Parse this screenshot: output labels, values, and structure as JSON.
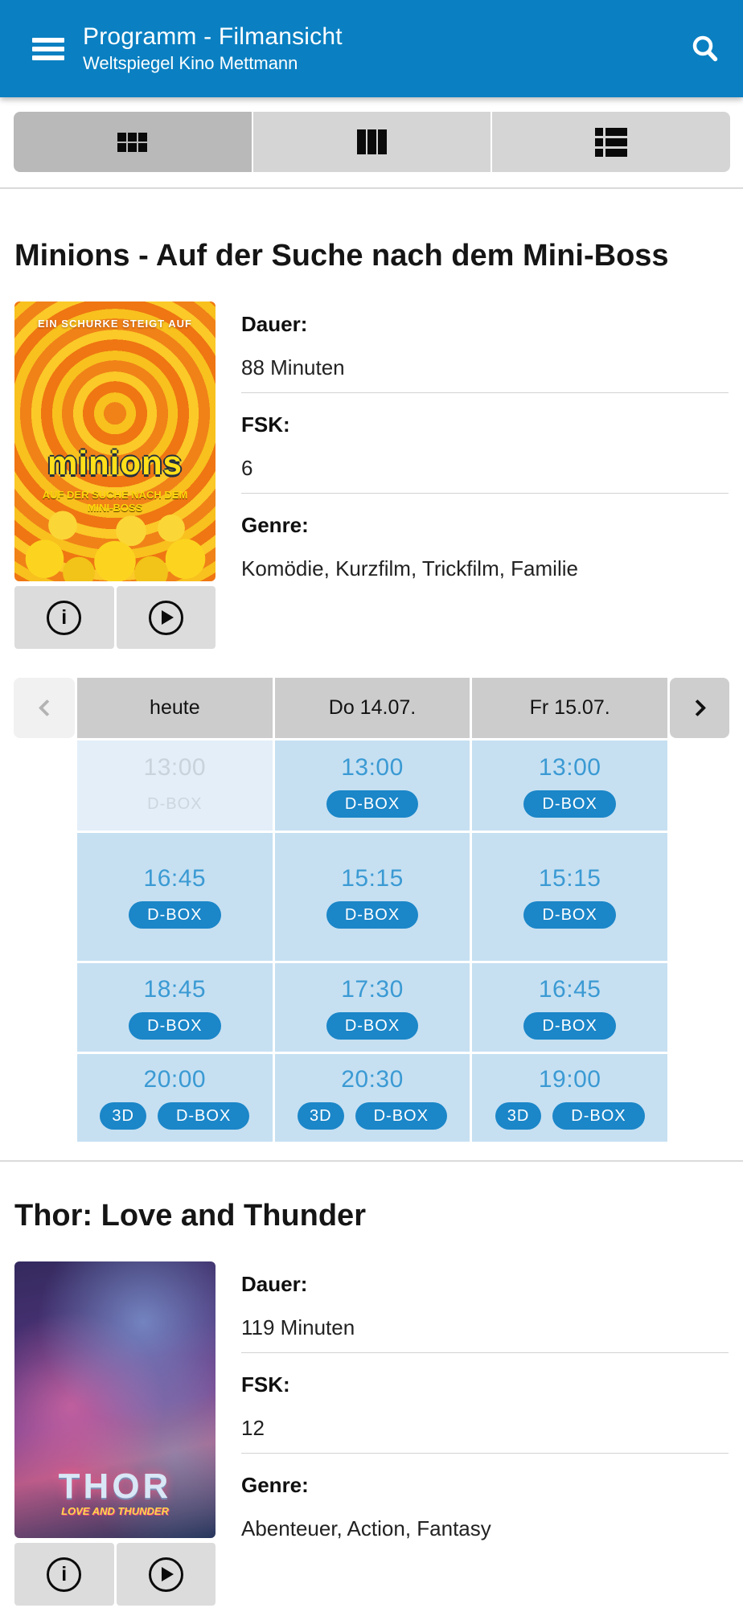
{
  "app": {
    "title": "Programm - Filmansicht",
    "subtitle": "Weltspiegel Kino Mettmann"
  },
  "colors": {
    "header_bg": "#0a80c2",
    "accent_blue": "#1b86c8",
    "time_blue": "#3b9ad3",
    "cell_bg": "#c6e0f2",
    "cell_past_bg": "#e3eef8",
    "past_text": "#c9d3db",
    "header_cell_bg": "#cccccc",
    "toggle_selected_bg": "#b9b9b9",
    "toggle_bg": "#d5d5d5",
    "action_button_bg": "#dcdcdc"
  },
  "view_toggle": [
    {
      "name": "grid",
      "selected": true
    },
    {
      "name": "columns",
      "selected": false
    },
    {
      "name": "list",
      "selected": false
    }
  ],
  "movies": [
    {
      "title": "Minions - Auf der Suche nach dem Mini-Boss",
      "poster": {
        "top_tagline": "EIN SCHURKE STEIGT AUF",
        "logo": "minions",
        "subtitle": "AUF DER SUCHE NACH DEM MINI-BOSS"
      },
      "details": [
        {
          "label": "Dauer:",
          "value": "88 Minuten"
        },
        {
          "label": "FSK:",
          "value": "6"
        },
        {
          "label": "Genre:",
          "value": "Komödie, Kurzfilm, Trickfilm, Familie"
        }
      ],
      "schedule": {
        "columns": [
          "heute",
          "Do 14.07.",
          "Fr 15.07."
        ],
        "rows": [
          [
            {
              "time": "13:00",
              "tags": [
                "D-BOX"
              ],
              "past": true
            },
            {
              "time": "13:00",
              "tags": [
                "D-BOX"
              ],
              "past": false
            },
            {
              "time": "13:00",
              "tags": [
                "D-BOX"
              ],
              "past": false
            }
          ],
          [
            {
              "time": "16:45",
              "tags": [
                "D-BOX"
              ],
              "past": false
            },
            {
              "time": "15:15",
              "tags": [
                "D-BOX"
              ],
              "past": false
            },
            {
              "time": "15:15",
              "tags": [
                "D-BOX"
              ],
              "past": false
            }
          ],
          [
            {
              "time": "18:45",
              "tags": [
                "D-BOX"
              ],
              "past": false
            },
            {
              "time": "17:30",
              "tags": [
                "D-BOX"
              ],
              "past": false
            },
            {
              "time": "16:45",
              "tags": [
                "D-BOX"
              ],
              "past": false
            }
          ],
          [
            {
              "time": "20:00",
              "tags": [
                "3D",
                "D-BOX"
              ],
              "past": false
            },
            {
              "time": "20:30",
              "tags": [
                "3D",
                "D-BOX"
              ],
              "past": false
            },
            {
              "time": "19:00",
              "tags": [
                "3D",
                "D-BOX"
              ],
              "past": false
            }
          ]
        ]
      }
    },
    {
      "title": "Thor: Love and Thunder",
      "poster": {
        "logo": "THOR",
        "subtitle": "LOVE AND THUNDER"
      },
      "details": [
        {
          "label": "Dauer:",
          "value": "119 Minuten"
        },
        {
          "label": "FSK:",
          "value": "12"
        },
        {
          "label": "Genre:",
          "value": "Abenteuer, Action, Fantasy"
        }
      ]
    }
  ]
}
